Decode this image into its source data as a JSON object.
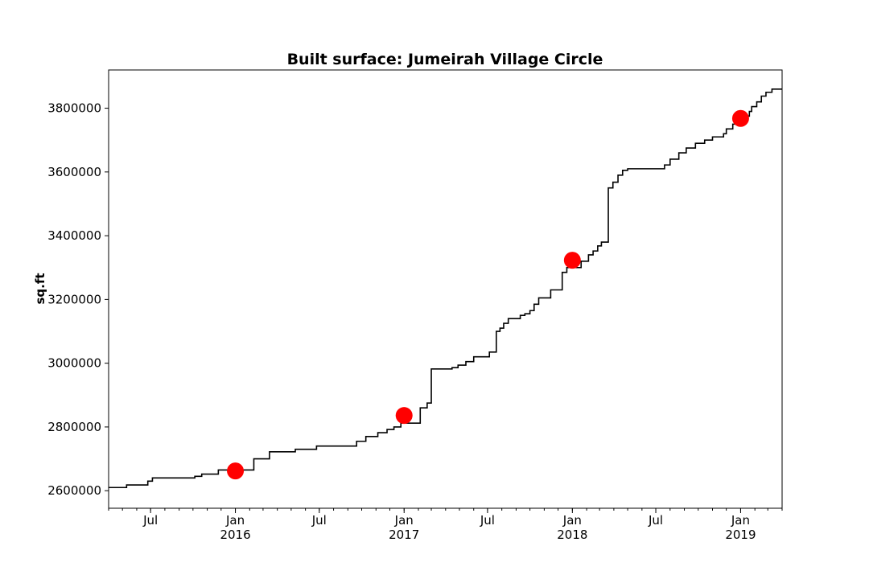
{
  "chart_data": {
    "type": "line",
    "title": "Built surface: Jumeirah Village Circle",
    "xlabel": "",
    "ylabel": "sq.ft",
    "xlim": [
      "2015-04-01",
      "2019-04-01"
    ],
    "ylim": [
      2545000,
      3920000
    ],
    "grid": false,
    "y_ticks": [
      2600000,
      2800000,
      3000000,
      3200000,
      3400000,
      3600000,
      3800000
    ],
    "x_ticks": [
      {
        "date": "2015-07-01",
        "label": "Jul",
        "sub": ""
      },
      {
        "date": "2016-01-01",
        "label": "Jan",
        "sub": "2016"
      },
      {
        "date": "2016-07-01",
        "label": "Jul",
        "sub": ""
      },
      {
        "date": "2017-01-01",
        "label": "Jan",
        "sub": "2017"
      },
      {
        "date": "2017-07-01",
        "label": "Jul",
        "sub": ""
      },
      {
        "date": "2018-01-01",
        "label": "Jan",
        "sub": "2018"
      },
      {
        "date": "2018-07-01",
        "label": "Jul",
        "sub": ""
      },
      {
        "date": "2019-01-01",
        "label": "Jan",
        "sub": "2019"
      }
    ],
    "series": [
      {
        "color": "#000000",
        "style": "step",
        "x": [
          "2015-04-01",
          "2015-05-10",
          "2015-06-25",
          "2015-07-05",
          "2015-10-05",
          "2015-10-20",
          "2015-11-25",
          "2016-02-10",
          "2016-03-15",
          "2016-05-10",
          "2016-06-25",
          "2016-09-20",
          "2016-10-10",
          "2016-11-05",
          "2016-11-25",
          "2016-12-10",
          "2016-12-25",
          "2017-02-05",
          "2017-02-20",
          "2017-03-01",
          "2017-04-15",
          "2017-04-28",
          "2017-05-15",
          "2017-06-01",
          "2017-07-05",
          "2017-07-20",
          "2017-07-28",
          "2017-08-05",
          "2017-08-15",
          "2017-09-10",
          "2017-09-20",
          "2017-10-01",
          "2017-10-10",
          "2017-10-20",
          "2017-11-15",
          "2017-12-10",
          "2017-12-20",
          "2018-01-20",
          "2018-02-05",
          "2018-02-15",
          "2018-02-25",
          "2018-03-05",
          "2018-03-20",
          "2018-03-30",
          "2018-04-10",
          "2018-04-20",
          "2018-05-01",
          "2018-07-20",
          "2018-08-01",
          "2018-08-20",
          "2018-09-05",
          "2018-09-25",
          "2018-10-15",
          "2018-11-01",
          "2018-11-25",
          "2018-12-01",
          "2018-12-15",
          "2018-12-25",
          "2019-01-01",
          "2019-01-10",
          "2019-01-20",
          "2019-01-25",
          "2019-02-05",
          "2019-02-15",
          "2019-02-25",
          "2019-03-10",
          "2019-04-01"
        ],
        "y": [
          2610000,
          2618000,
          2630000,
          2640000,
          2645000,
          2652000,
          2665000,
          2700000,
          2722000,
          2730000,
          2740000,
          2755000,
          2770000,
          2782000,
          2792000,
          2800000,
          2812000,
          2860000,
          2875000,
          2982000,
          2986000,
          2994000,
          3005000,
          3020000,
          3035000,
          3100000,
          3110000,
          3125000,
          3140000,
          3150000,
          3155000,
          3165000,
          3185000,
          3205000,
          3230000,
          3285000,
          3300000,
          3320000,
          3340000,
          3352000,
          3368000,
          3380000,
          3550000,
          3568000,
          3590000,
          3605000,
          3610000,
          3622000,
          3640000,
          3660000,
          3675000,
          3690000,
          3700000,
          3710000,
          3720000,
          3735000,
          3750000,
          3760000,
          3768000,
          3775000,
          3790000,
          3805000,
          3820000,
          3838000,
          3850000,
          3860000,
          3860000
        ]
      }
    ],
    "markers": {
      "color": "#ff0000",
      "x": [
        "2016-01-01",
        "2017-01-01",
        "2018-01-01",
        "2019-01-01"
      ],
      "y": [
        2662000,
        2836000,
        3323000,
        3768000
      ]
    }
  }
}
